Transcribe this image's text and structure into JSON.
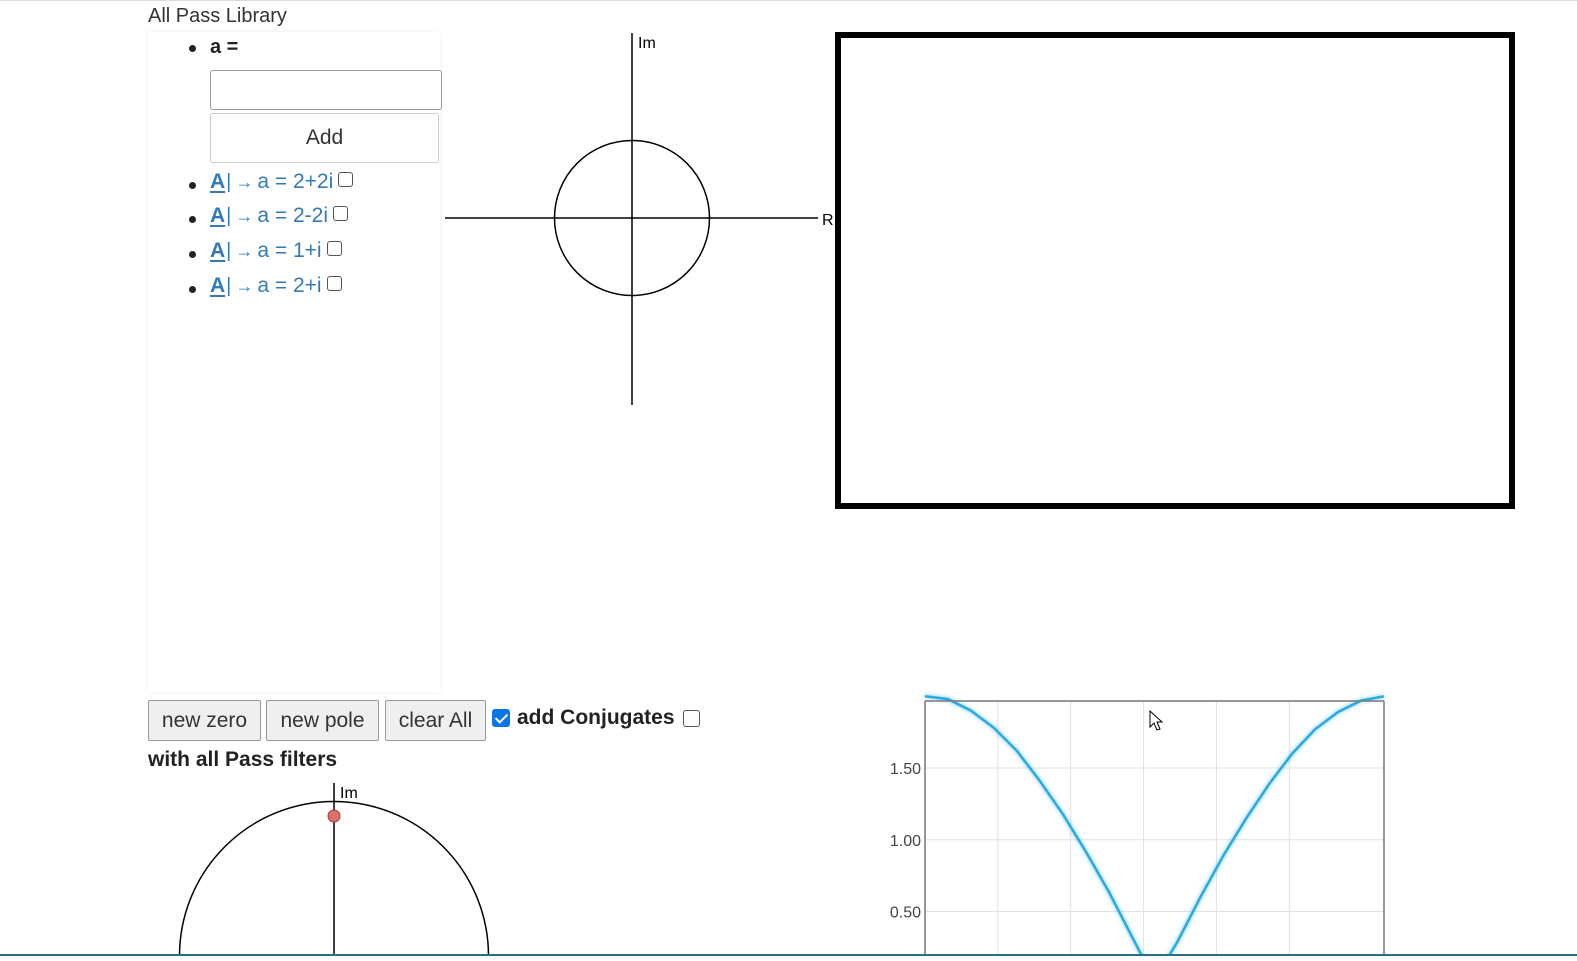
{
  "library": {
    "title": "All Pass Library",
    "a_label": "a =",
    "input_value": "",
    "input_placeholder": "",
    "add_label": "Add",
    "filter_icon": "A",
    "filter_icon_name": "text-format-icon",
    "filter_arrow": "→",
    "filters": [
      {
        "label": "a = 2+2i",
        "checked": false
      },
      {
        "label": "a = 2-2i",
        "checked": false
      },
      {
        "label": "a = 1+i",
        "checked": false
      },
      {
        "label": "a = 2+i",
        "checked": false
      }
    ]
  },
  "zplane_top": {
    "im_label": "Im",
    "re_label": "R"
  },
  "controls": {
    "new_zero": "new zero",
    "new_pole": "new pole",
    "clear_all": "clear All",
    "add_conjugates_label": "add Conjugates",
    "add_conjugates_checked": true,
    "all_pass_checked": false,
    "with_all_pass_label": "with all Pass filters"
  },
  "zplane_bottom": {
    "im_label": "Im"
  },
  "chart_data": {
    "type": "line",
    "title": "",
    "xlabel": "",
    "ylabel": "",
    "ytick_labels": [
      "1.50",
      "1.00",
      "0.50"
    ],
    "yticks": [
      1.5,
      1.0,
      0.5
    ],
    "grid": true,
    "ylim_visible": [
      0.37,
      2.0
    ],
    "series": [
      {
        "color": "#29aae1",
        "x": [
          0,
          0.05,
          0.1,
          0.15,
          0.2,
          0.25,
          0.3,
          0.35,
          0.4,
          0.45,
          0.5,
          0.55,
          0.6,
          0.65,
          0.7,
          0.75,
          0.8,
          0.85,
          0.9,
          0.95,
          1
        ],
        "y": [
          2.0,
          1.98,
          1.9,
          1.78,
          1.62,
          1.41,
          1.18,
          0.92,
          0.64,
          0.33,
          0.02,
          0.29,
          0.6,
          0.89,
          1.15,
          1.39,
          1.6,
          1.77,
          1.89,
          1.97,
          2.0
        ]
      }
    ]
  }
}
